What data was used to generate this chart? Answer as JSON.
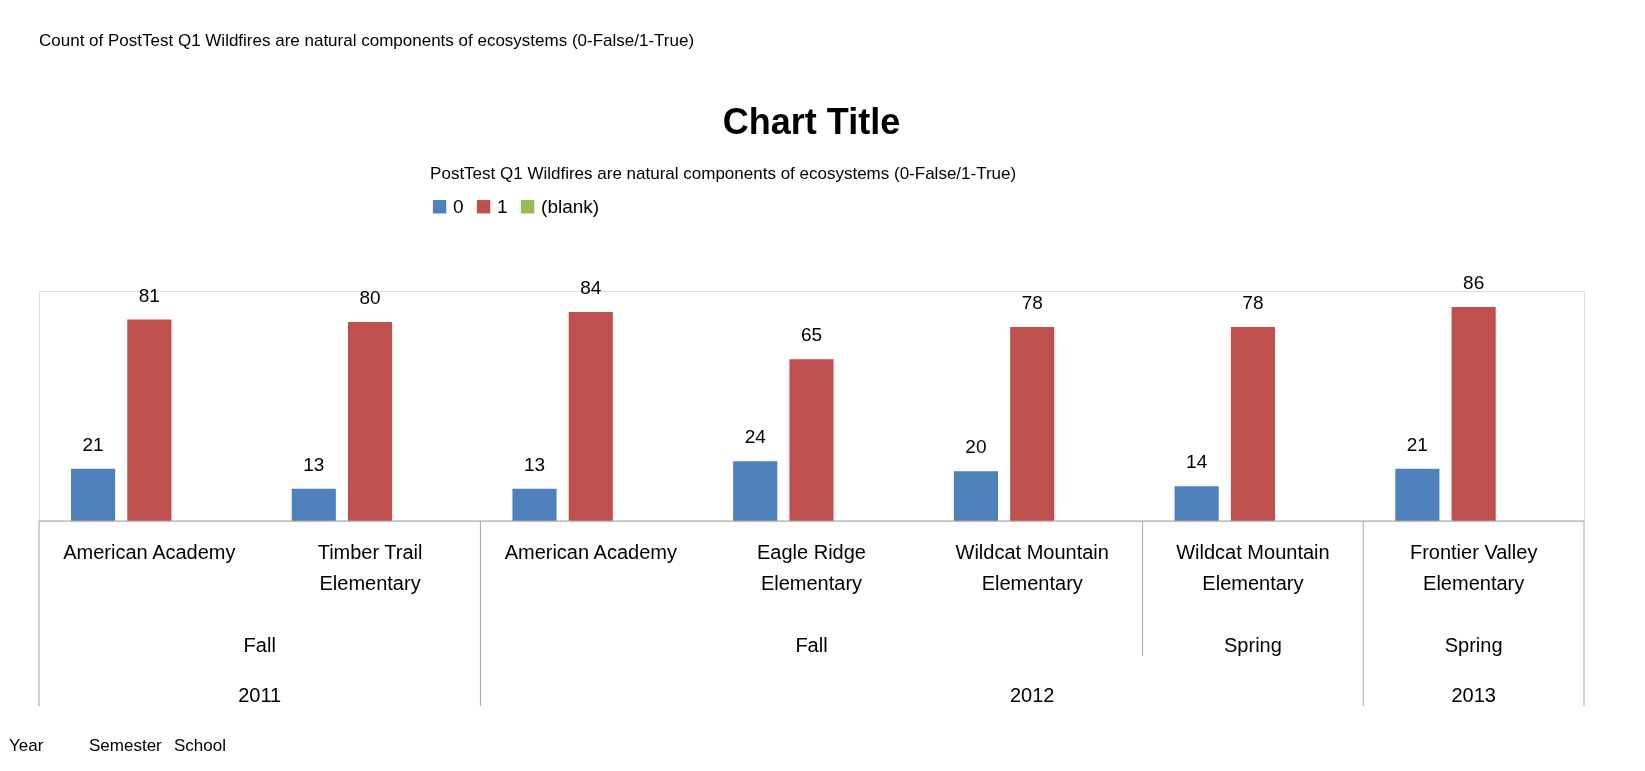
{
  "chart_data": {
    "type": "bar",
    "title": "Chart Title",
    "legend_title": "PostTest Q1  Wildfires are natural components of ecosystems (0-False/1-True)",
    "categories": [
      "American Academy",
      "Timber Trail Elementary",
      "American Academy",
      "Eagle Ridge Elementary",
      "Wildcat Mountain Elementary",
      "Wildcat Mountain Elementary",
      "Frontier Valley Elementary"
    ],
    "series": [
      {
        "name": "0",
        "color": "#4f81bd",
        "values": [
          21,
          13,
          13,
          24,
          20,
          14,
          21
        ]
      },
      {
        "name": "1",
        "color": "#c0504d",
        "values": [
          81,
          80,
          84,
          65,
          78,
          78,
          86
        ]
      },
      {
        "name": "(blank)",
        "color": "#9bbb59",
        "values": [
          null,
          null,
          null,
          null,
          null,
          null,
          null
        ]
      }
    ],
    "data_labels": true,
    "legend": "top",
    "annotations": [
      "Count of PostTest Q1  Wildfires are natural components of ecosystems (0-False/1-True)",
      "Fall",
      "Fall",
      "Spring",
      "Spring",
      "2011",
      "2012",
      "2013",
      "Year",
      "Semester",
      "School"
    ]
  }
}
